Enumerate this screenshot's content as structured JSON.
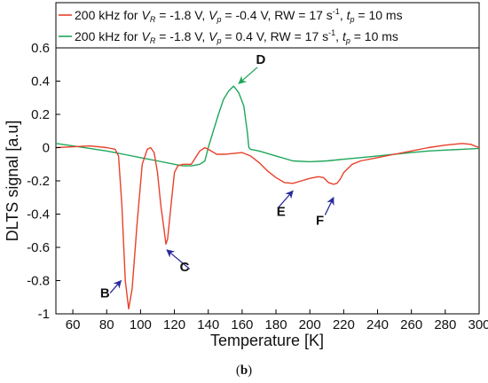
{
  "chart_data": {
    "type": "line",
    "xlabel": "Temperature [K]",
    "ylabel": "DLTS signal [a.u]",
    "xlim": [
      50,
      300
    ],
    "ylim": [
      -1,
      0.6
    ],
    "xticks": [
      60,
      80,
      100,
      120,
      140,
      160,
      180,
      200,
      220,
      240,
      260,
      280,
      300
    ],
    "yticks": [
      -1,
      -0.8,
      -0.6,
      -0.4,
      -0.2,
      0,
      0.2,
      0.4,
      0.6
    ],
    "xtick_labels": [
      "60",
      "80",
      "100",
      "120",
      "140",
      "160",
      "180",
      "200",
      "220",
      "240",
      "260",
      "280",
      "300"
    ],
    "ytick_labels": [
      "-1",
      "-0.8",
      "-0.6",
      "-0.4",
      "-0.2",
      "0",
      "0.2",
      "0.4",
      "0.6"
    ],
    "legend_position": "top",
    "grid": false,
    "series": [
      {
        "legend": {
          "pre": "200 kHz for ",
          "vr_sub": "R",
          "vr_val": " = -1.8 V, ",
          "vp_sub": "p",
          "vp_val": " = -0.4 V, RW = 17 s",
          "sup": "-1",
          "tp_pre": ", ",
          "tp_sub": "p",
          "tp_val": " = 10 ms"
        },
        "color": "#e8412a",
        "x": [
          50,
          60,
          70,
          80,
          85,
          87,
          89,
          91,
          93,
          95,
          98,
          101,
          104,
          106,
          108,
          110,
          112,
          114,
          115,
          116,
          118,
          120,
          122,
          125,
          130,
          135,
          138,
          140,
          145,
          150,
          155,
          160,
          165,
          170,
          175,
          180,
          185,
          190,
          195,
          200,
          205,
          208,
          211,
          214,
          216,
          218,
          220,
          225,
          230,
          240,
          250,
          260,
          270,
          280,
          290,
          295,
          300
        ],
        "y": [
          0,
          0.005,
          0.01,
          0.0,
          -0.01,
          -0.05,
          -0.35,
          -0.8,
          -0.97,
          -0.85,
          -0.45,
          -0.1,
          -0.01,
          0.0,
          -0.03,
          -0.15,
          -0.35,
          -0.5,
          -0.58,
          -0.55,
          -0.35,
          -0.15,
          -0.11,
          -0.1,
          -0.1,
          -0.02,
          0.0,
          -0.01,
          -0.04,
          -0.04,
          -0.035,
          -0.03,
          -0.05,
          -0.09,
          -0.14,
          -0.18,
          -0.21,
          -0.215,
          -0.2,
          -0.185,
          -0.175,
          -0.18,
          -0.21,
          -0.22,
          -0.215,
          -0.19,
          -0.15,
          -0.1,
          -0.08,
          -0.06,
          -0.04,
          -0.02,
          0.0,
          0.015,
          0.025,
          0.02,
          0.0
        ]
      },
      {
        "legend": {
          "pre": "200 kHz for ",
          "vr_sub": "R",
          "vr_val": " = -1.8 V, ",
          "vp_sub": "p",
          "vp_val": " = 0.4 V, RW = 17 s",
          "sup": "-1",
          "tp_pre": ", ",
          "tp_sub": "p",
          "tp_val": " = 10 ms"
        },
        "color": "#1fa65a",
        "x": [
          50,
          60,
          70,
          80,
          90,
          100,
          110,
          120,
          125,
          130,
          135,
          138,
          140,
          143,
          146,
          149,
          152,
          155,
          158,
          161,
          163,
          164,
          165,
          170,
          180,
          190,
          200,
          210,
          220,
          230,
          240,
          250,
          260,
          270,
          280,
          290,
          300
        ],
        "y": [
          0.025,
          0.01,
          -0.005,
          -0.02,
          -0.04,
          -0.06,
          -0.08,
          -0.1,
          -0.11,
          -0.11,
          -0.1,
          -0.08,
          0.0,
          0.1,
          0.2,
          0.29,
          0.34,
          0.37,
          0.33,
          0.25,
          0.1,
          0.0,
          -0.01,
          -0.02,
          -0.05,
          -0.08,
          -0.085,
          -0.08,
          -0.07,
          -0.06,
          -0.05,
          -0.04,
          -0.03,
          -0.02,
          -0.015,
          -0.01,
          -0.005
        ]
      }
    ],
    "annotations": [
      {
        "label": "B",
        "color": "#2b2b9a",
        "text_at": [
          79,
          -0.9
        ],
        "arrow_from": [
          82,
          -0.875
        ],
        "arrow_to": [
          88.5,
          -0.8
        ]
      },
      {
        "label": "C",
        "color": "#2b2b9a",
        "text_at": [
          126,
          -0.745
        ],
        "arrow_from": [
          129,
          -0.73
        ],
        "arrow_to": [
          115.5,
          -0.615
        ]
      },
      {
        "label": "D",
        "color": "#1fa65a",
        "text_at": [
          171,
          0.503
        ],
        "arrow_from": [
          169,
          0.483
        ],
        "arrow_to": [
          158,
          0.385
        ]
      },
      {
        "label": "E",
        "color": "#2b2b9a",
        "text_at": [
          183,
          -0.41
        ],
        "arrow_from": [
          181,
          -0.365
        ],
        "arrow_to": [
          190,
          -0.26
        ]
      },
      {
        "label": "F",
        "color": "#2b2b9a",
        "text_at": [
          206,
          -0.463
        ],
        "arrow_from": [
          209,
          -0.405
        ],
        "arrow_to": [
          214,
          -0.3
        ]
      }
    ]
  },
  "caption": {
    "open": "(",
    "letter": "b",
    "close": ")"
  }
}
